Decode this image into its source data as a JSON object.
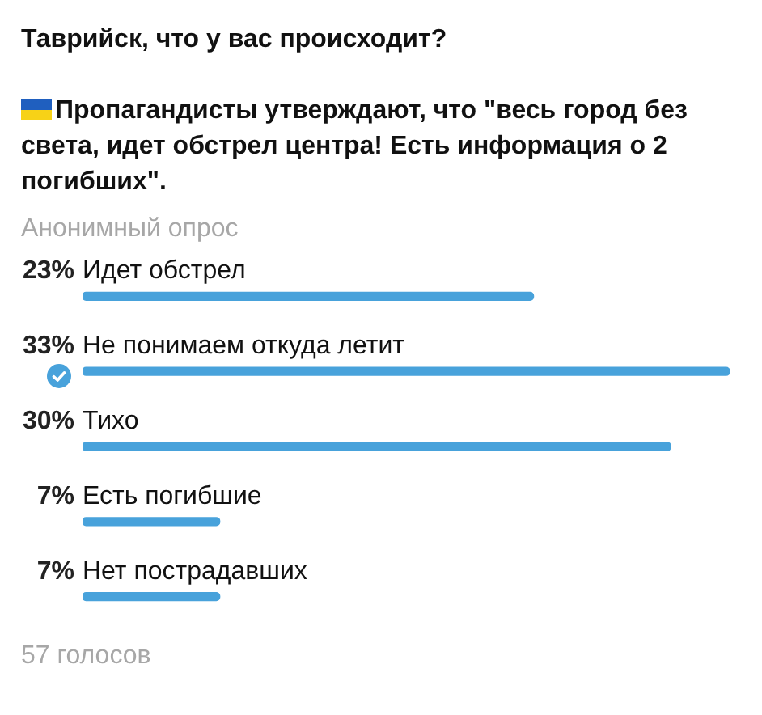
{
  "chart_data": {
    "type": "bar",
    "orientation": "horizontal",
    "title": "Таврийск, что у вас происходит?",
    "subtitle": "Пропагандисты утверждают, что \"весь город без света, идет обстрел центра! Есть информация о 2 погибших\".",
    "annotations": [
      "Анонимный опрос",
      "57 голосов"
    ],
    "categories": [
      "Идет обстрел",
      "Не понимаем откуда летит",
      "Тихо",
      "Есть погибшие",
      "Нет пострадавших"
    ],
    "values": [
      23,
      33,
      30,
      7,
      7
    ],
    "value_labels": [
      "23%",
      "33%",
      "30%",
      "7%",
      "7%"
    ],
    "color": "#48a2db"
  }
}
